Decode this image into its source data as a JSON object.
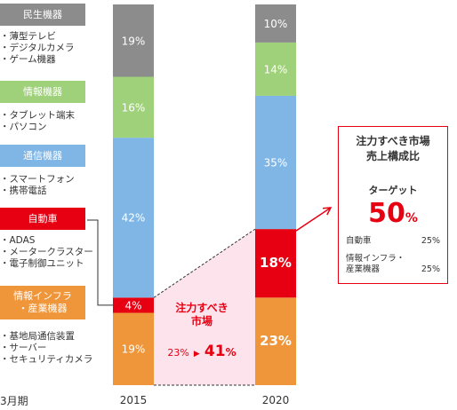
{
  "legend": [
    {
      "title": "民生機器",
      "color": "#8c8c8c",
      "items": [
        "・薄型テレビ",
        "・デジタルカメラ",
        "・ゲーム機器"
      ]
    },
    {
      "title": "情報機器",
      "color": "#9fd07a",
      "items": [
        "・タブレット端末",
        "・パソコン"
      ]
    },
    {
      "title": "通信機器",
      "color": "#7fb6e6",
      "items": [
        "・スマートフォン",
        "・携帯電話"
      ]
    },
    {
      "title": "自動車",
      "color": "#e60012",
      "items": [
        "・ADAS",
        "・メータークラスター",
        "・電子制御ユニット"
      ]
    },
    {
      "title": "情報インフラ\n・産業機器",
      "color": "#f0963a",
      "items": [
        "・基地局通信装置",
        "・サーバー",
        "・セキュリティカメラ"
      ]
    }
  ],
  "period_label": "3月期",
  "callout": {
    "title": "注力すべき\n市場",
    "from": "23%",
    "to": "41",
    "to_unit": "%",
    "arrow": "▶"
  },
  "target_box": {
    "title": "注力すべき市場\n売上構成比",
    "target_label": "ターゲット",
    "target_value": "50",
    "target_unit": "%",
    "rows": [
      {
        "label": "自動車",
        "value": "25%"
      },
      {
        "label": "情報インフラ・\n産業機器",
        "value": "25%"
      }
    ]
  },
  "colors": {
    "consumer": "#8c8c8c",
    "info": "#9fd07a",
    "comm": "#7fb6e6",
    "auto": "#e60012",
    "infra": "#f0963a",
    "accent": "#e60012",
    "highlight_fill": "#fde3ec"
  },
  "chart_data": {
    "type": "bar",
    "stacked": true,
    "categories": [
      "2015",
      "2020"
    ],
    "series": [
      {
        "name": "情報インフラ・産業機器",
        "values": [
          19,
          23
        ],
        "labels": [
          "19%",
          "23%"
        ],
        "color": "#f0963a"
      },
      {
        "name": "自動車",
        "values": [
          4,
          18
        ],
        "labels": [
          "4%",
          "18%"
        ],
        "color": "#e60012"
      },
      {
        "name": "通信機器",
        "values": [
          42,
          35
        ],
        "labels": [
          "42%",
          "35%"
        ],
        "color": "#7fb6e6"
      },
      {
        "name": "情報機器",
        "values": [
          16,
          14
        ],
        "labels": [
          "16%",
          "14%"
        ],
        "color": "#9fd07a"
      },
      {
        "name": "民生機器",
        "values": [
          19,
          10
        ],
        "labels": [
          "19%",
          "10%"
        ],
        "color": "#8c8c8c"
      }
    ],
    "ylim": [
      0,
      100
    ]
  }
}
